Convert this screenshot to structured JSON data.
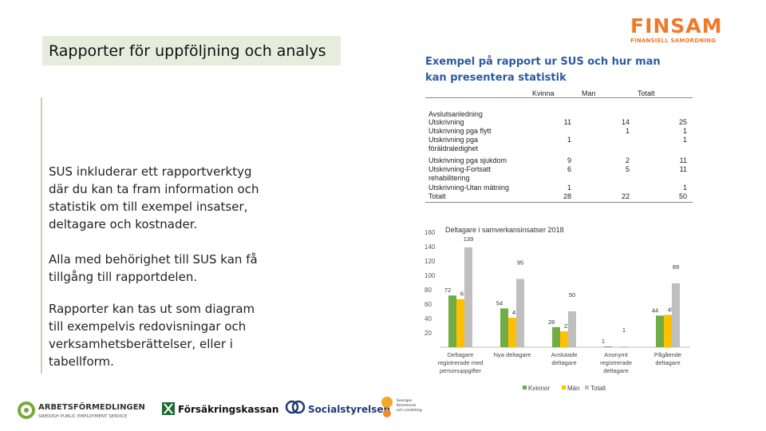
{
  "header": {
    "title": "Rapporter för uppföljning och analys",
    "logo_big": "FINSAM",
    "logo_small": "FINANSIELL SAMORDNING"
  },
  "subtitle": "Exempel på rapport ur SUS och hur man kan presentera statistik",
  "paragraphs": [
    "SUS inkluderar ett rapportverktyg där du kan ta fram information och statistik om till exempel insatser, deltagare och kostnader.",
    "Alla med behörighet till SUS kan få tillgång till rapportdelen.",
    "Rapporter kan tas ut som diagram till exempelvis redovisningar och verksamhetsberättelser, eller i tabellform."
  ],
  "table": {
    "columns": [
      "Kvinna",
      "Man",
      "Totalt"
    ],
    "rows": [
      {
        "label": "Avslutsanledning",
        "k": "",
        "m": "",
        "t": ""
      },
      {
        "label": "Utskrivning",
        "k": "11",
        "m": "14",
        "t": "25"
      },
      {
        "label": "Utskrivning pga flytt",
        "k": "",
        "m": "1",
        "t": "1"
      },
      {
        "label": "Utskrivning pga föräldraledighet",
        "k": "1",
        "m": "",
        "t": "1"
      },
      {
        "label": "Utskrivning pga sjukdom",
        "k": "9",
        "m": "2",
        "t": "11"
      },
      {
        "label": "Utskrivning-Fortsatt rehabilitering",
        "k": "6",
        "m": "5",
        "t": "11"
      },
      {
        "label": "Utskrivning-Utan mätning",
        "k": "1",
        "m": "",
        "t": "1"
      },
      {
        "label": "Totalt",
        "k": "28",
        "m": "22",
        "t": "50"
      }
    ]
  },
  "chart_data": {
    "type": "bar",
    "title": "Deltagare i samverkansinsatser 2018",
    "categories": [
      "Deltagare registrerade med personuppgifter",
      "Nya deltagare",
      "Avslutade deltagare",
      "Anonymt registrerade deltagare",
      "Pågående deltagare"
    ],
    "category_lines": [
      [
        "Deltagare",
        "registrerade med",
        "personuppgifter"
      ],
      [
        "Nya deltagare"
      ],
      [
        "Avslutade",
        "deltagare"
      ],
      [
        "Anonymt",
        "registrerade",
        "deltagare"
      ],
      [
        "Pågående",
        "deltagare"
      ]
    ],
    "series": [
      {
        "name": "Kvinnor",
        "color": "#70ad47",
        "values": [
          72,
          54,
          28,
          1,
          44
        ]
      },
      {
        "name": "Män",
        "color": "#ffc000",
        "values": [
          67,
          41,
          22,
          0,
          45
        ]
      },
      {
        "name": "Totalt",
        "color": "#bfbfbf",
        "values": [
          139,
          95,
          50,
          1,
          89
        ]
      }
    ],
    "data_labels": [
      [
        "72",
        "54",
        "28",
        "1",
        "44"
      ],
      [
        "67",
        "41",
        "22",
        "",
        "45"
      ],
      [
        "139",
        "95",
        "50",
        "1",
        "89"
      ]
    ],
    "yticks": [
      "20",
      "40",
      "60",
      "80",
      "100",
      "120",
      "140",
      "160"
    ],
    "ylim": [
      0,
      160
    ],
    "legend": "bottom",
    "grid": false
  }
}
